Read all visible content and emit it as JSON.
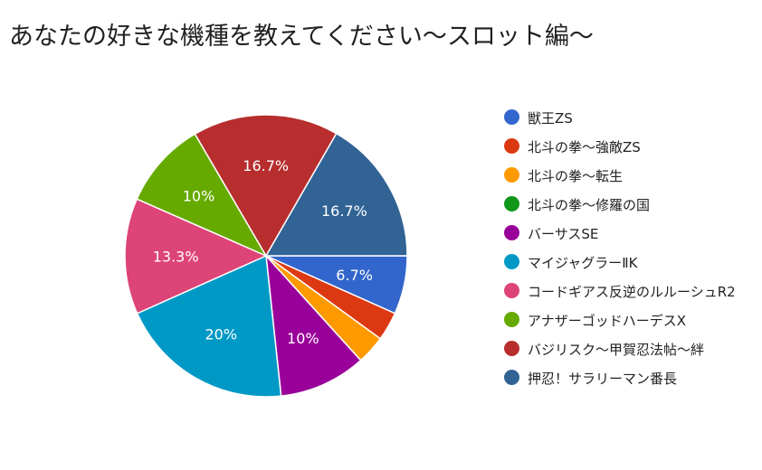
{
  "page": {
    "title": "あなたの好きな機種を教えてください～スロット編～"
  },
  "chart_data": {
    "type": "pie",
    "title": "あなたの好きな機種を教えてください～スロット編～",
    "legend_position": "right",
    "slices": [
      {
        "label": "獣王ZS",
        "value": 6.7,
        "data_label": "6.7%",
        "color": "#3366cc"
      },
      {
        "label": "北斗の拳～強敵ZS",
        "value": 3.3,
        "data_label": "",
        "color": "#dc3912"
      },
      {
        "label": "北斗の拳～転生",
        "value": 3.3,
        "data_label": "",
        "color": "#ff9900"
      },
      {
        "label": "北斗の拳～修羅の国",
        "value": 0,
        "data_label": "",
        "color": "#109618"
      },
      {
        "label": "バーサスSE",
        "value": 10,
        "data_label": "10%",
        "color": "#990099"
      },
      {
        "label": "マイジャグラーⅡK",
        "value": 20,
        "data_label": "20%",
        "color": "#0099c6"
      },
      {
        "label": "コードギアス反逆のルルーシュR2",
        "value": 13.3,
        "data_label": "13.3%",
        "color": "#dd4477"
      },
      {
        "label": "アナザーゴッドハーデスX",
        "value": 10,
        "data_label": "10%",
        "color": "#66aa00"
      },
      {
        "label": "バジリスク～甲賀忍法帖～絆",
        "value": 16.7,
        "data_label": "16.7%",
        "color": "#b82e2e"
      },
      {
        "label": "押忍！サラリーマン番長",
        "value": 16.7,
        "data_label": "16.7%",
        "color": "#316395"
      }
    ]
  }
}
